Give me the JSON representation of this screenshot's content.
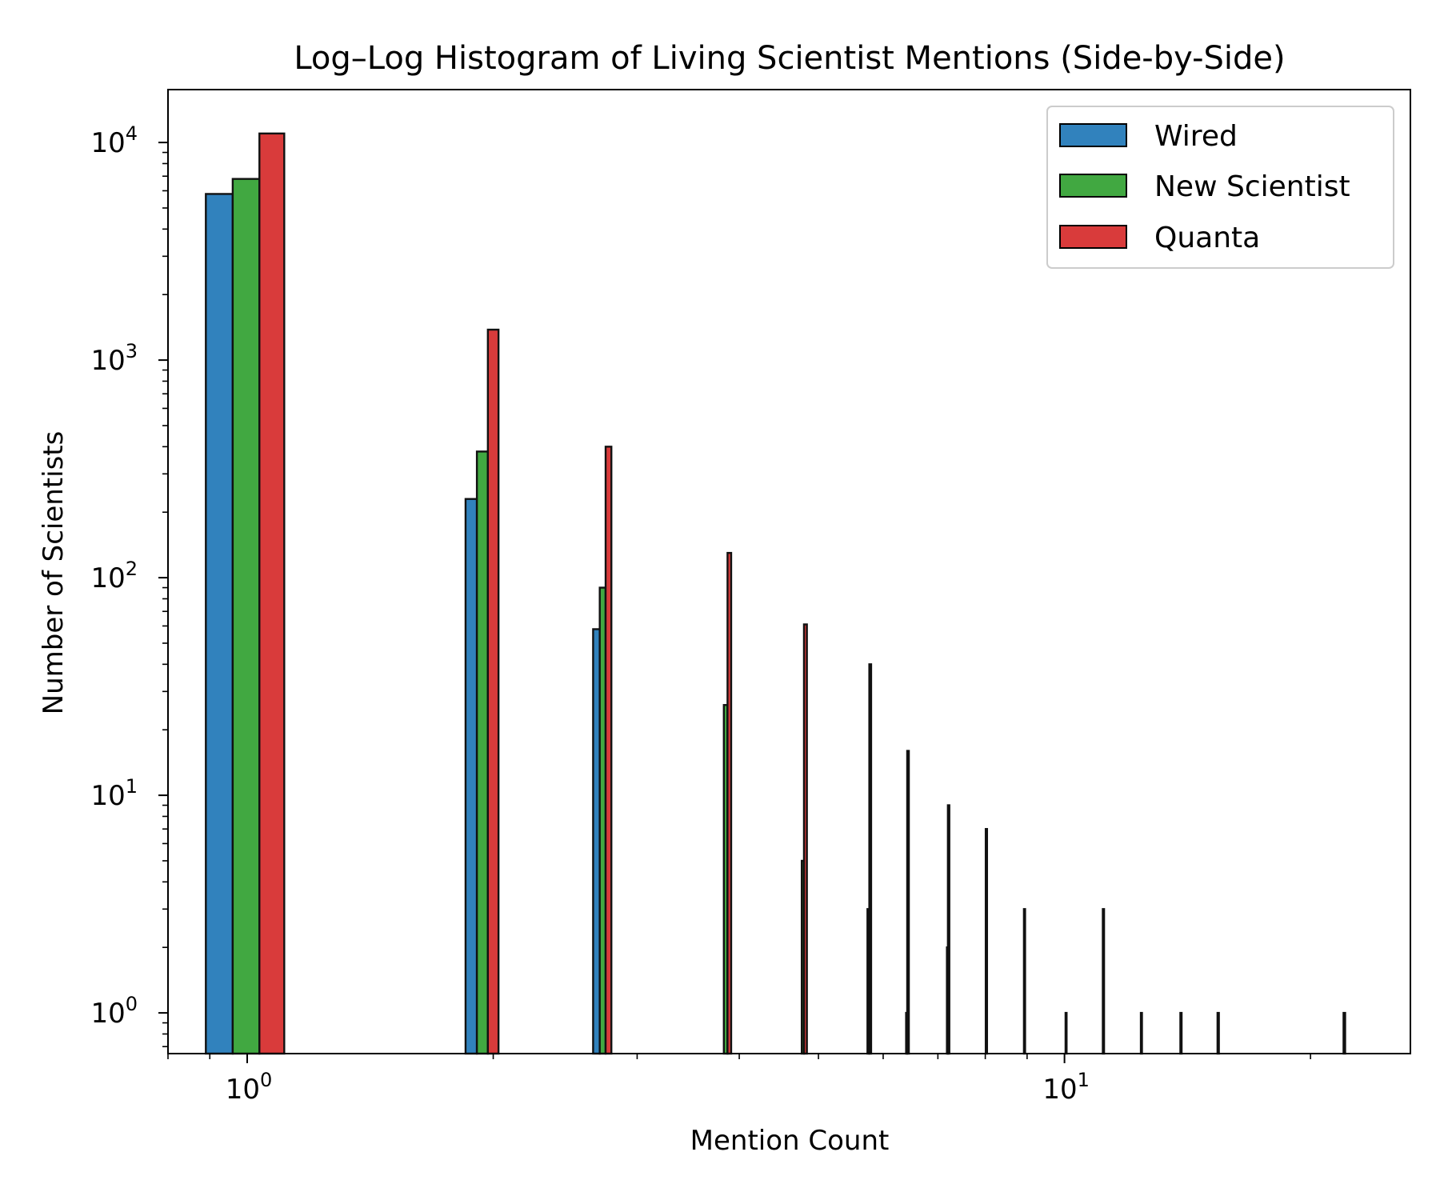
{
  "chart_data": {
    "type": "bar",
    "title": "Log–Log Histogram of Living Scientist Mentions (Side-by-Side)",
    "xlabel": "Mention Count",
    "ylabel": "Number of Scientists",
    "xscale": "log",
    "yscale": "log",
    "xlim": [
      0.8,
      26.5
    ],
    "ylim": [
      0.65,
      17500
    ],
    "x_ticks": [
      {
        "base": "10",
        "exp": "0",
        "value": 1
      },
      {
        "base": "10",
        "exp": "1",
        "value": 10
      }
    ],
    "y_ticks": [
      {
        "base": "10",
        "exp": "0",
        "value": 1
      },
      {
        "base": "10",
        "exp": "1",
        "value": 10
      },
      {
        "base": "10",
        "exp": "2",
        "value": 100
      },
      {
        "base": "10",
        "exp": "3",
        "value": 1000
      },
      {
        "base": "10",
        "exp": "4",
        "value": 10000
      }
    ],
    "grid": false,
    "legend_position": "top-right",
    "series": [
      {
        "name": "Wired",
        "color": "#3182bd",
        "bars": [
          {
            "x0": 0.89,
            "x1": 0.96,
            "value": 5800
          },
          {
            "x0": 1.85,
            "x1": 1.91,
            "value": 230
          },
          {
            "x0": 2.65,
            "x1": 2.7,
            "value": 58
          }
        ]
      },
      {
        "name": "New Scientist",
        "color": "#41a841",
        "bars": [
          {
            "x0": 0.96,
            "x1": 1.035,
            "value": 6800
          },
          {
            "x0": 1.91,
            "x1": 1.97,
            "value": 380
          },
          {
            "x0": 2.7,
            "x1": 2.745,
            "value": 90
          },
          {
            "x0": 3.83,
            "x1": 3.87,
            "value": 26
          },
          {
            "x0": 4.77,
            "x1": 4.8,
            "value": 5
          },
          {
            "x0": 5.74,
            "x1": 5.77,
            "value": 3
          },
          {
            "x0": 6.4,
            "x1": 6.42,
            "value": 1
          },
          {
            "x0": 7.18,
            "x1": 7.2,
            "value": 2
          }
        ]
      },
      {
        "name": "Quanta",
        "color": "#d93b3b",
        "bars": [
          {
            "x0": 1.035,
            "x1": 1.11,
            "value": 11000
          },
          {
            "x0": 1.97,
            "x1": 2.03,
            "value": 1380
          },
          {
            "x0": 2.745,
            "x1": 2.79,
            "value": 400
          },
          {
            "x0": 3.87,
            "x1": 3.91,
            "value": 130
          },
          {
            "x0": 4.8,
            "x1": 4.84,
            "value": 61
          },
          {
            "x0": 5.77,
            "x1": 5.8,
            "value": 40
          },
          {
            "x0": 6.42,
            "x1": 6.45,
            "value": 16
          },
          {
            "x0": 7.2,
            "x1": 7.23,
            "value": 9
          },
          {
            "x0": 8.01,
            "x1": 8.04,
            "value": 7
          },
          {
            "x0": 8.92,
            "x1": 8.95,
            "value": 3
          },
          {
            "x0": 10.03,
            "x1": 10.06,
            "value": 1
          },
          {
            "x0": 11.14,
            "x1": 11.18,
            "value": 3
          },
          {
            "x0": 12.4,
            "x1": 12.44,
            "value": 1
          },
          {
            "x0": 13.86,
            "x1": 13.91,
            "value": 1
          },
          {
            "x0": 15.39,
            "x1": 15.45,
            "value": 1
          },
          {
            "x0": 21.95,
            "x1": 22.05,
            "value": 1
          }
        ]
      }
    ]
  }
}
